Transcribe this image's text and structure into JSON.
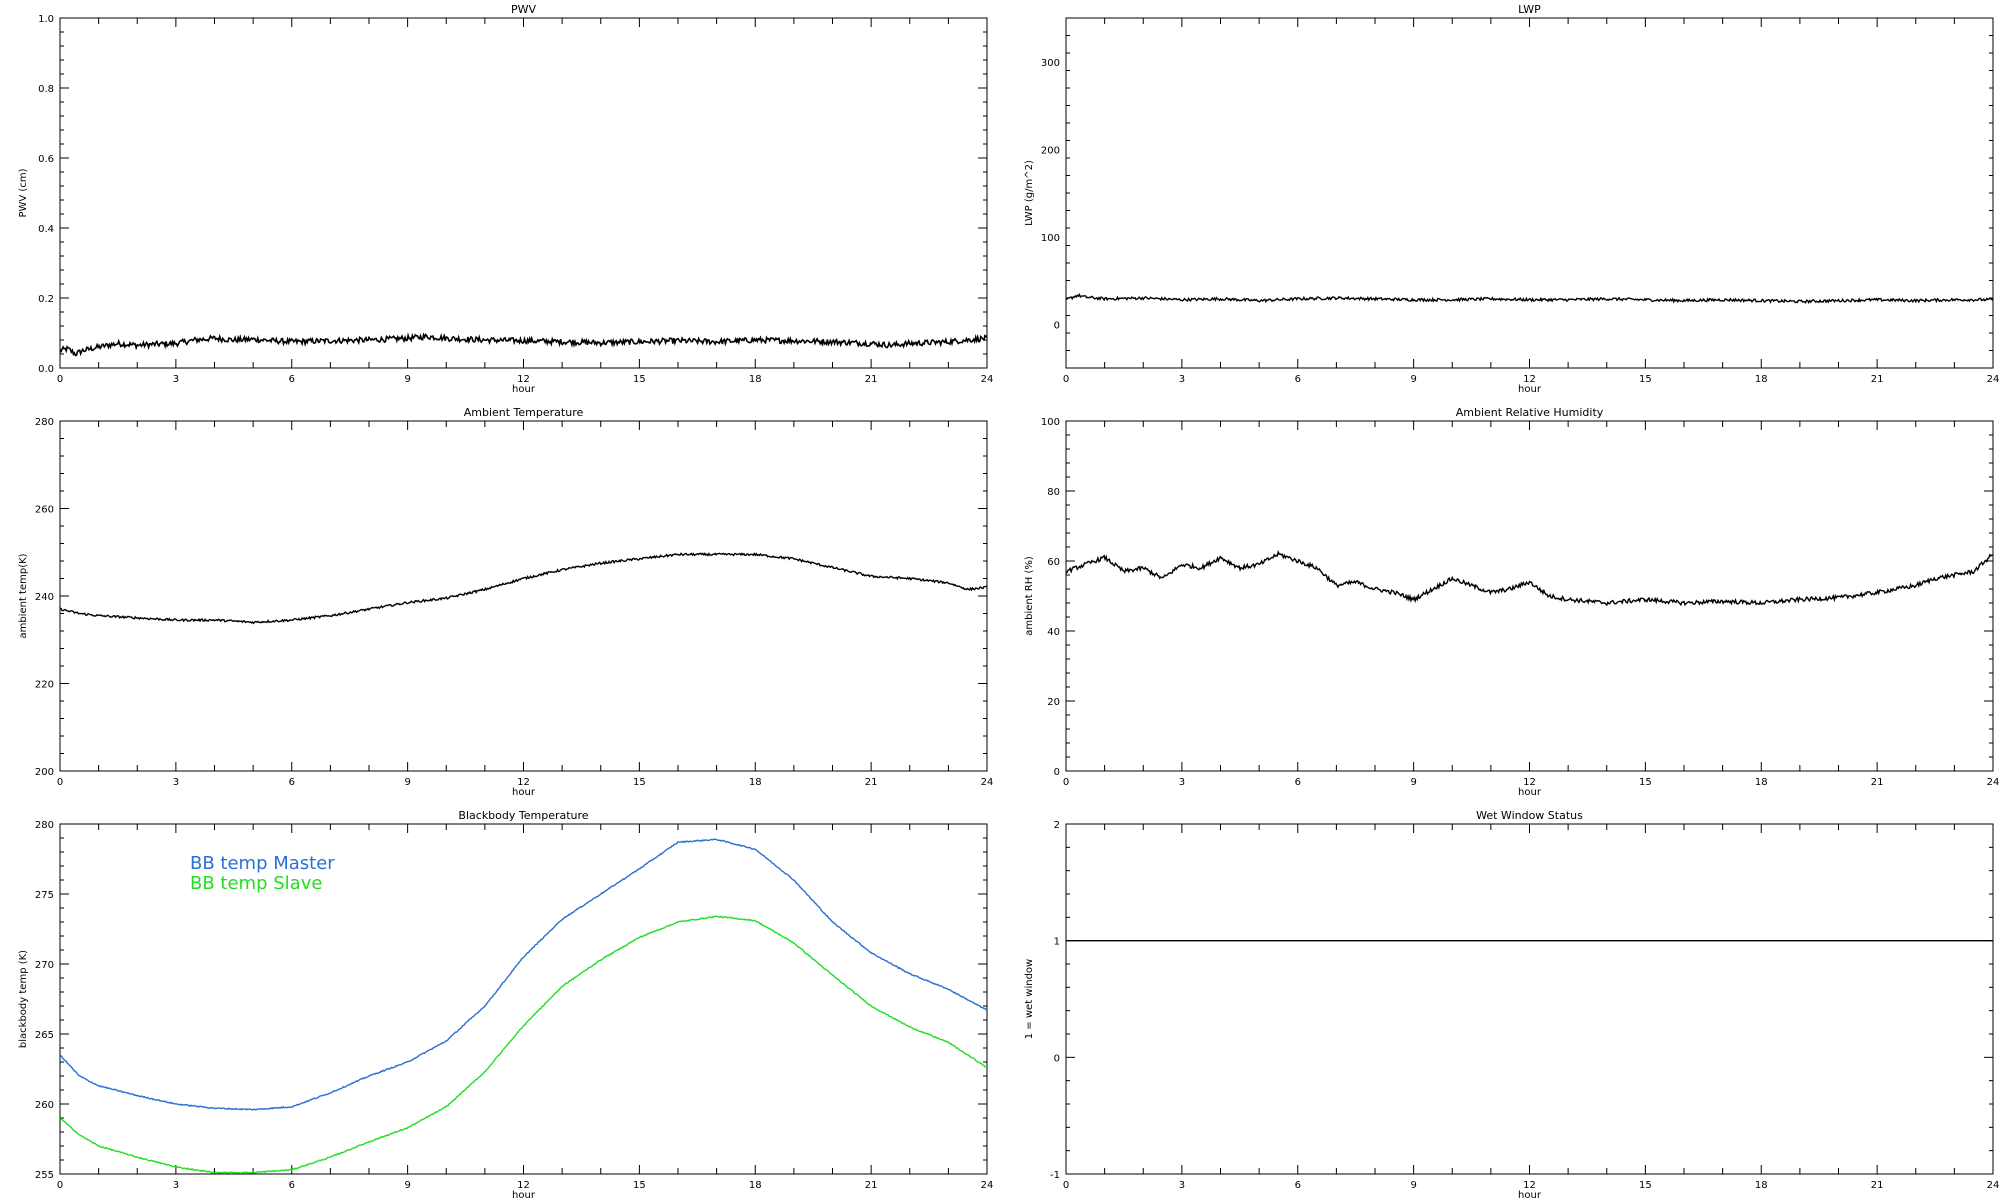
{
  "chart_data": [
    {
      "id": "pwv",
      "type": "line",
      "title": "PWV",
      "xlabel": "hour",
      "ylabel": "PWV (cm)",
      "xlim": [
        0,
        24
      ],
      "ylim": [
        0,
        1.0
      ],
      "xticks": [
        0,
        3,
        6,
        9,
        12,
        15,
        18,
        21,
        24
      ],
      "xtick_labels": [
        "0",
        "3",
        "6",
        "9",
        "12",
        "15",
        "18",
        "21",
        "24"
      ],
      "yticks": [
        0,
        0.2,
        0.4,
        0.6,
        0.8,
        1.0
      ],
      "ytick_labels": [
        "0.0",
        "0.2",
        "0.4",
        "0.6",
        "0.8",
        "1.0"
      ],
      "series": [
        {
          "color": "#000000",
          "noise": 0.008,
          "x": [
            0,
            0.2,
            0.4,
            0.6,
            1,
            1.5,
            2,
            2.5,
            3,
            3.5,
            4,
            4.5,
            5,
            5.5,
            6,
            7,
            8,
            9,
            9.5,
            10,
            11,
            12,
            13,
            14,
            15,
            16,
            17,
            18,
            19,
            20,
            21,
            21.5,
            22,
            23,
            23.5,
            24
          ],
          "y": [
            0.05,
            0.055,
            0.04,
            0.05,
            0.06,
            0.07,
            0.065,
            0.068,
            0.07,
            0.08,
            0.085,
            0.08,
            0.082,
            0.078,
            0.075,
            0.078,
            0.08,
            0.085,
            0.09,
            0.085,
            0.08,
            0.078,
            0.075,
            0.072,
            0.075,
            0.078,
            0.075,
            0.08,
            0.078,
            0.075,
            0.07,
            0.065,
            0.07,
            0.075,
            0.08,
            0.085
          ]
        }
      ]
    },
    {
      "id": "lwp",
      "type": "line",
      "title": "LWP",
      "xlabel": "hour",
      "ylabel": "LWP (g/m^2)",
      "xlim": [
        0,
        24
      ],
      "ylim": [
        -50,
        350
      ],
      "xticks": [
        0,
        3,
        6,
        9,
        12,
        15,
        18,
        21,
        24
      ],
      "xtick_labels": [
        "0",
        "3",
        "6",
        "9",
        "12",
        "15",
        "18",
        "21",
        "24"
      ],
      "yticks": [
        0,
        100,
        200,
        300
      ],
      "ytick_labels": [
        "0",
        "100",
        "200",
        "300"
      ],
      "series": [
        {
          "color": "#000000",
          "noise": 1.6,
          "x": [
            0,
            0.3,
            0.5,
            1,
            2,
            3,
            4,
            5,
            6,
            7,
            8,
            9,
            10,
            11,
            12,
            13,
            14,
            15,
            16,
            17,
            18,
            19,
            20,
            21,
            22,
            23,
            24
          ],
          "y": [
            28,
            33,
            31,
            29,
            30,
            28,
            29,
            27,
            29,
            30,
            29,
            28,
            28,
            29,
            28,
            28,
            29,
            28,
            27,
            28,
            27,
            26,
            27,
            28,
            27,
            28,
            28
          ]
        }
      ]
    },
    {
      "id": "ambient-temperature",
      "type": "line",
      "title": "Ambient Temperature",
      "xlabel": "hour",
      "ylabel": "ambient temp(K)",
      "xlim": [
        0,
        24
      ],
      "ylim": [
        200,
        280
      ],
      "xticks": [
        0,
        3,
        6,
        9,
        12,
        15,
        18,
        21,
        24
      ],
      "xtick_labels": [
        "0",
        "3",
        "6",
        "9",
        "12",
        "15",
        "18",
        "21",
        "24"
      ],
      "yticks": [
        200,
        220,
        240,
        260,
        280
      ],
      "ytick_labels": [
        "200",
        "220",
        "240",
        "260",
        "280"
      ],
      "series": [
        {
          "color": "#000000",
          "noise": 0.25,
          "x": [
            0,
            0.5,
            1,
            2,
            3,
            4,
            5,
            6,
            7,
            8,
            9,
            10,
            11,
            12,
            13,
            14,
            15,
            16,
            17,
            18,
            19,
            20,
            21,
            22,
            23,
            23.5,
            24
          ],
          "y": [
            237,
            236,
            235.5,
            235,
            234.5,
            234.5,
            234,
            234.5,
            235.5,
            237,
            238.5,
            239.5,
            241.5,
            244,
            246,
            247.5,
            248.5,
            249.5,
            249.5,
            249.5,
            248.5,
            246.5,
            244.5,
            244,
            243,
            241.5,
            242
          ]
        }
      ]
    },
    {
      "id": "ambient-relative-humidity",
      "type": "line",
      "title": "Ambient Relative Humidity",
      "xlabel": "hour",
      "ylabel": "ambient RH (%)",
      "xlim": [
        0,
        24
      ],
      "ylim": [
        0,
        100
      ],
      "xticks": [
        0,
        3,
        6,
        9,
        12,
        15,
        18,
        21,
        24
      ],
      "xtick_labels": [
        "0",
        "3",
        "6",
        "9",
        "12",
        "15",
        "18",
        "21",
        "24"
      ],
      "yticks": [
        0,
        20,
        40,
        60,
        80,
        100
      ],
      "ytick_labels": [
        "0",
        "20",
        "40",
        "60",
        "80",
        "100"
      ],
      "series": [
        {
          "color": "#000000",
          "noise": 0.6,
          "x": [
            0,
            0.5,
            1,
            1.5,
            2,
            2.5,
            3,
            3.5,
            4,
            4.5,
            5,
            5.5,
            6,
            6.5,
            7,
            7.5,
            8,
            8.5,
            9,
            9.5,
            10,
            11,
            11.5,
            12,
            12.5,
            13,
            14,
            15,
            16,
            17,
            18,
            19,
            20,
            21,
            22,
            22.5,
            23,
            23.5,
            24
          ],
          "y": [
            57,
            59,
            61,
            57,
            58,
            55,
            59,
            58,
            61,
            58,
            59,
            62,
            60,
            58,
            53,
            54,
            52,
            51,
            49,
            52,
            55,
            51,
            52,
            54,
            50,
            49,
            48,
            49,
            48,
            48.5,
            48,
            49,
            49.5,
            51,
            53,
            55,
            56,
            57,
            62
          ]
        }
      ]
    },
    {
      "id": "blackbody-temperature",
      "type": "line",
      "title": "Blackbody Temperature",
      "xlabel": "hour",
      "ylabel": "blackbody temp (K)",
      "xlim": [
        0,
        24
      ],
      "ylim": [
        255,
        280
      ],
      "xticks": [
        0,
        3,
        6,
        9,
        12,
        15,
        18,
        21,
        24
      ],
      "xtick_labels": [
        "0",
        "3",
        "6",
        "9",
        "12",
        "15",
        "18",
        "21",
        "24"
      ],
      "yticks": [
        255,
        260,
        265,
        270,
        275,
        280
      ],
      "ytick_labels": [
        "255",
        "260",
        "265",
        "270",
        "275",
        "280"
      ],
      "legend": "top-left",
      "series": [
        {
          "name": "BB temp Master",
          "color": "#2a6fd6",
          "noise": 0.04,
          "x": [
            0,
            0.5,
            1,
            2,
            3,
            4,
            5,
            6,
            7,
            8,
            9,
            10,
            11,
            12,
            13,
            14,
            15,
            16,
            17,
            18,
            19,
            20,
            21,
            22,
            23,
            24
          ],
          "y": [
            263.5,
            262,
            261.3,
            260.6,
            260,
            259.7,
            259.6,
            259.8,
            260.8,
            262,
            263,
            264.5,
            267,
            270.5,
            273.2,
            275,
            276.8,
            278.7,
            278.9,
            278.2,
            276,
            273,
            270.8,
            269.3,
            268.2,
            266.7
          ]
        },
        {
          "name": "BB temp Slave",
          "color": "#22dd22",
          "noise": 0.04,
          "x": [
            0,
            0.5,
            1,
            2,
            3,
            4,
            5,
            6,
            7,
            8,
            9,
            10,
            11,
            12,
            13,
            14,
            15,
            16,
            17,
            18,
            19,
            20,
            21,
            22,
            23,
            24
          ],
          "y": [
            259,
            257.8,
            257,
            256.2,
            255.5,
            255.1,
            255.1,
            255.3,
            256.2,
            257.3,
            258.3,
            259.8,
            262.3,
            265.6,
            268.4,
            270.3,
            271.9,
            273,
            273.4,
            273.1,
            271.5,
            269.2,
            267,
            265.5,
            264.4,
            262.6
          ]
        }
      ]
    },
    {
      "id": "wet-window-status",
      "type": "line",
      "title": "Wet Window Status",
      "xlabel": "hour",
      "ylabel": "1 = wet window",
      "xlim": [
        0,
        24
      ],
      "ylim": [
        -1,
        2
      ],
      "xticks": [
        0,
        3,
        6,
        9,
        12,
        15,
        18,
        21,
        24
      ],
      "xtick_labels": [
        "0",
        "3",
        "6",
        "9",
        "12",
        "15",
        "18",
        "21",
        "24"
      ],
      "yticks": [
        -1,
        0,
        1,
        2
      ],
      "ytick_labels": [
        "-1",
        "0",
        "1",
        "2"
      ],
      "series": [
        {
          "color": "#000000",
          "noise": 0,
          "x": [
            0,
            24
          ],
          "y": [
            1,
            1
          ]
        }
      ]
    }
  ]
}
